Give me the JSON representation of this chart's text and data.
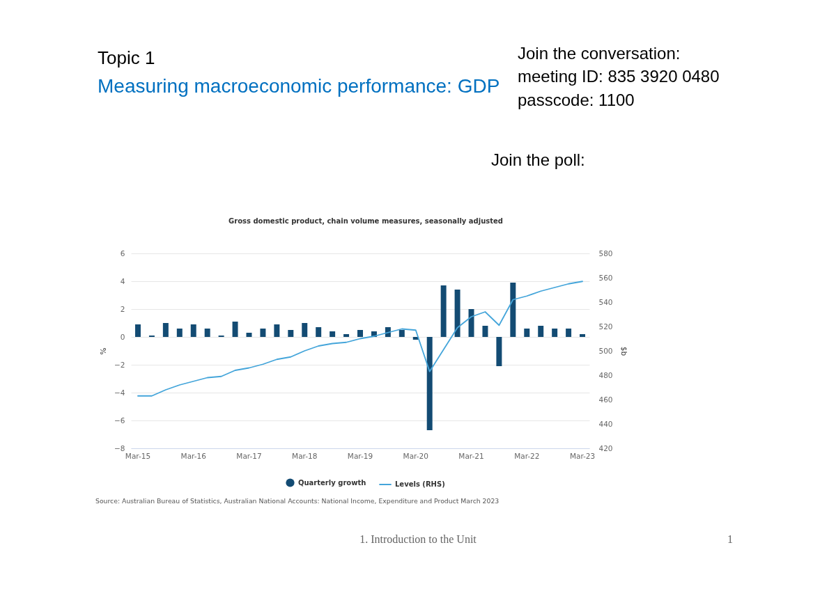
{
  "chart_data": {
    "type": "bar",
    "title": "Gross domestic product, chain volume measures, seasonally adjusted",
    "categories": [
      "Mar-15",
      null,
      null,
      null,
      "Mar-16",
      null,
      null,
      null,
      "Mar-17",
      null,
      null,
      null,
      "Mar-18",
      null,
      null,
      null,
      "Mar-19",
      null,
      null,
      null,
      "Mar-20",
      null,
      null,
      null,
      "Mar-21",
      null,
      null,
      null,
      "Mar-22",
      null,
      null,
      null,
      "Mar-23"
    ],
    "series": [
      {
        "name": "Quarterly growth",
        "color": "#134b73",
        "values": [
          0.9,
          0.1,
          1.0,
          0.6,
          0.9,
          0.6,
          0.1,
          1.1,
          0.3,
          0.6,
          0.9,
          0.5,
          1.0,
          0.7,
          0.4,
          0.2,
          0.5,
          0.4,
          0.7,
          0.5,
          -0.2,
          -6.7,
          3.7,
          3.4,
          2.0,
          0.8,
          -2.1,
          3.9,
          0.6,
          0.8,
          0.6,
          0.6,
          0.2
        ]
      },
      {
        "name": "Levels (RHS)",
        "type": "line",
        "axis": "y2",
        "color": "#44a5da",
        "values": [
          463,
          463,
          468,
          472,
          475,
          478,
          479,
          484,
          486,
          489,
          493,
          495,
          500,
          504,
          506,
          507,
          510,
          512,
          515,
          518,
          517,
          483,
          501,
          519,
          528,
          532,
          521,
          542,
          545,
          549,
          552,
          555,
          557
        ]
      }
    ],
    "ylabel": "%",
    "y2label": "$b",
    "ylim": [
      -8,
      6
    ],
    "yticks": [
      -8,
      -6,
      -4,
      -2,
      0,
      2,
      4,
      6
    ],
    "y2lim": [
      420,
      580
    ],
    "y2ticks": [
      420,
      440,
      460,
      480,
      500,
      520,
      540,
      560,
      580
    ],
    "grid": "y",
    "legend": "bottom",
    "annotations": [
      "Topic 1",
      "Measuring macroeconomic performance: GDP",
      "Join the conversation:",
      "meeting ID: 835 3920 0480",
      "passcode: 1100",
      "Join the poll:",
      "Source: Australian Bureau of Statistics, Australian National Accounts: National Income, Expenditure and Product March 2023",
      "1. Introduction to the Unit",
      "1"
    ]
  }
}
